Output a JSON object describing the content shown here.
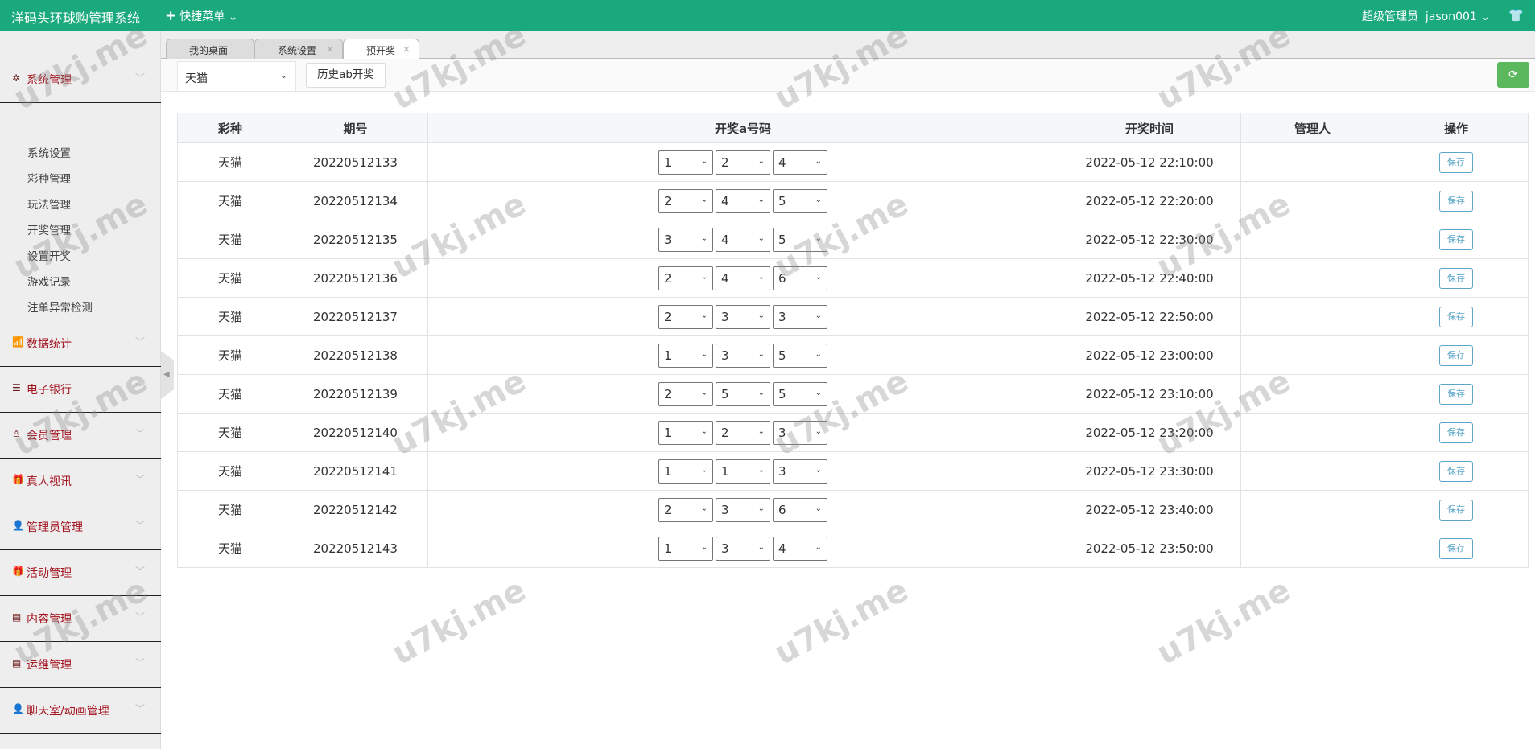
{
  "header": {
    "brand": "洋码头环球购管理系统",
    "quick_menu": "快捷菜单",
    "user_role": "超级管理员",
    "username": "jason001"
  },
  "sidebar": {
    "system": {
      "label": "系统管理",
      "items": [
        "系统设置",
        "彩种管理",
        "玩法管理",
        "开奖管理",
        "设置开奖",
        "游戏记录",
        "注单异常检测"
      ]
    },
    "groups": [
      {
        "label": "数据统计"
      },
      {
        "label": "电子银行"
      },
      {
        "label": "会员管理"
      },
      {
        "label": "真人视讯"
      },
      {
        "label": "管理员管理"
      },
      {
        "label": "活动管理"
      },
      {
        "label": "内容管理"
      },
      {
        "label": "运维管理"
      },
      {
        "label": "聊天室/动画管理"
      }
    ]
  },
  "tabs": [
    {
      "label": "我的桌面"
    },
    {
      "label": "系统设置"
    },
    {
      "label": "预开奖"
    }
  ],
  "toolbar": {
    "lottery": "天猫",
    "history": "历史ab开奖"
  },
  "table": {
    "headers": [
      "彩种",
      "期号",
      "开奖a号码",
      "开奖时间",
      "管理人",
      "操作"
    ],
    "save_label": "保存",
    "rows": [
      {
        "lottery": "天猫",
        "issue": "20220512133",
        "nums": [
          "1",
          "2",
          "4"
        ],
        "time": "2022-05-12 22:10:00",
        "admin": ""
      },
      {
        "lottery": "天猫",
        "issue": "20220512134",
        "nums": [
          "2",
          "4",
          "5"
        ],
        "time": "2022-05-12 22:20:00",
        "admin": ""
      },
      {
        "lottery": "天猫",
        "issue": "20220512135",
        "nums": [
          "3",
          "4",
          "5"
        ],
        "time": "2022-05-12 22:30:00",
        "admin": ""
      },
      {
        "lottery": "天猫",
        "issue": "20220512136",
        "nums": [
          "2",
          "4",
          "6"
        ],
        "time": "2022-05-12 22:40:00",
        "admin": ""
      },
      {
        "lottery": "天猫",
        "issue": "20220512137",
        "nums": [
          "2",
          "3",
          "3"
        ],
        "time": "2022-05-12 22:50:00",
        "admin": ""
      },
      {
        "lottery": "天猫",
        "issue": "20220512138",
        "nums": [
          "1",
          "3",
          "5"
        ],
        "time": "2022-05-12 23:00:00",
        "admin": ""
      },
      {
        "lottery": "天猫",
        "issue": "20220512139",
        "nums": [
          "2",
          "5",
          "5"
        ],
        "time": "2022-05-12 23:10:00",
        "admin": ""
      },
      {
        "lottery": "天猫",
        "issue": "20220512140",
        "nums": [
          "1",
          "2",
          "3"
        ],
        "time": "2022-05-12 23:20:00",
        "admin": ""
      },
      {
        "lottery": "天猫",
        "issue": "20220512141",
        "nums": [
          "1",
          "1",
          "3"
        ],
        "time": "2022-05-12 23:30:00",
        "admin": ""
      },
      {
        "lottery": "天猫",
        "issue": "20220512142",
        "nums": [
          "2",
          "3",
          "6"
        ],
        "time": "2022-05-12 23:40:00",
        "admin": ""
      },
      {
        "lottery": "天猫",
        "issue": "20220512143",
        "nums": [
          "1",
          "3",
          "4"
        ],
        "time": "2022-05-12 23:50:00",
        "admin": ""
      }
    ]
  },
  "watermark": "u7kj.me",
  "colors": {
    "header": "#1aa97b",
    "menu_text": "#a3121f",
    "refresh": "#5cb85c"
  }
}
